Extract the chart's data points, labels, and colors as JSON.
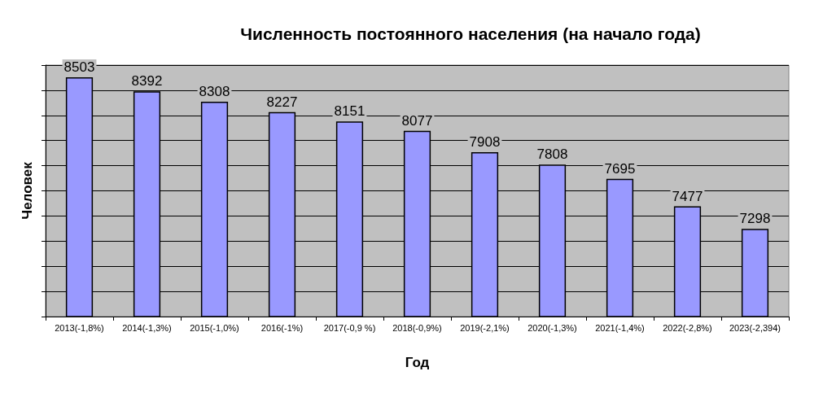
{
  "chart_data": {
    "type": "bar",
    "title": "Численность постоянного населения (на начало года)",
    "xlabel": "Год",
    "ylabel": "Человек",
    "categories": [
      "2013(-1,8%)",
      "2014(-1,3%)",
      "2015(-1,0%)",
      "2016(-1%)",
      "2017(-0,9 %)",
      "2018(-0,9%)",
      "2019(-2,1%)",
      "2020(-1,3%)",
      "2021(-1,4%)",
      "2022(-2,8%)",
      "2023(-2,394)"
    ],
    "values": [
      8503,
      8392,
      8308,
      8227,
      8151,
      8077,
      7908,
      7808,
      7695,
      7477,
      7298
    ],
    "color": "#9999ff",
    "data_labels": true,
    "ylim": [
      6600,
      8600
    ],
    "yticks": [
      {
        "value": 6600,
        "label": null
      },
      {
        "value": 6800,
        "label": null
      },
      {
        "value": 7000,
        "label": null
      },
      {
        "value": 7200,
        "label": null
      },
      {
        "value": 7400,
        "label": null
      },
      {
        "value": 7600,
        "label": null
      },
      {
        "value": 7800,
        "label": null
      },
      {
        "value": 8000,
        "label": null
      },
      {
        "value": 8200,
        "label": null
      },
      {
        "value": 8400,
        "label": null
      },
      {
        "value": 8600,
        "label": null
      }
    ],
    "grid": "y",
    "tick_labels": "x"
  }
}
